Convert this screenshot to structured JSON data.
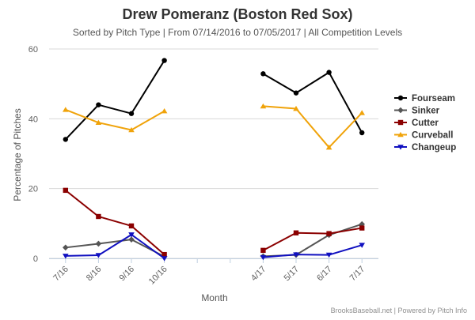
{
  "chart_data": {
    "type": "line",
    "title": "Drew Pomeranz (Boston Red Sox)",
    "subtitle": "Sorted by Pitch Type | From 07/14/2016 to 07/05/2017 | All Competition Levels",
    "xlabel": "Month",
    "ylabel": "Percentage of Pitches",
    "ylim": [
      0,
      60
    ],
    "yticks": [
      "0",
      "20",
      "40",
      "60"
    ],
    "grid": true,
    "legend_position": "right",
    "categories": [
      "7/16",
      "8/16",
      "9/16",
      "10/16",
      "",
      "",
      "4/17",
      "5/17",
      "6/17",
      "7/17"
    ],
    "series": [
      {
        "name": "Fourseam",
        "color": "#000000",
        "marker": "circle",
        "values": [
          34.1,
          44.0,
          41.5,
          56.7,
          null,
          null,
          52.9,
          47.4,
          53.3,
          36.0
        ]
      },
      {
        "name": "Sinker",
        "color": "#555555",
        "marker": "diamond",
        "values": [
          3.1,
          4.2,
          5.4,
          0.5,
          null,
          null,
          0.6,
          1.0,
          6.7,
          9.8
        ]
      },
      {
        "name": "Cutter",
        "color": "#8b0000",
        "marker": "square",
        "values": [
          19.5,
          12.0,
          9.3,
          1.1,
          null,
          null,
          2.3,
          7.3,
          7.1,
          8.7
        ]
      },
      {
        "name": "Curveball",
        "color": "#f0a30a",
        "marker": "triangle",
        "values": [
          42.6,
          38.9,
          36.8,
          42.2,
          null,
          null,
          43.6,
          42.9,
          31.8,
          41.7
        ]
      },
      {
        "name": "Changeup",
        "color": "#1010c0",
        "marker": "triangle-down",
        "values": [
          0.7,
          0.9,
          6.8,
          0.0,
          null,
          null,
          0.3,
          1.1,
          1.0,
          3.8
        ]
      }
    ]
  },
  "credits": "BrooksBaseball.net | Powered by Pitch Info"
}
